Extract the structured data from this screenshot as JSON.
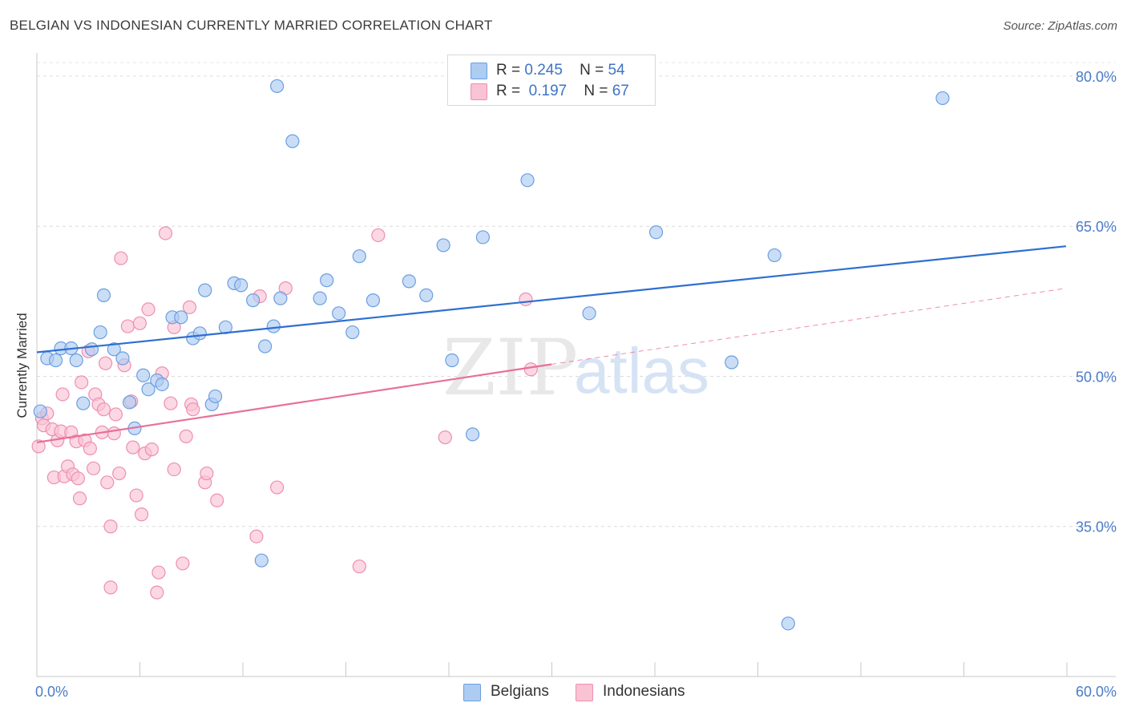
{
  "title": "BELGIAN VS INDONESIAN CURRENTLY MARRIED CORRELATION CHART",
  "source": "Source: ZipAtlas.com",
  "legend": {
    "rows": [
      {
        "r_label": "R =",
        "r_value": "0.245",
        "n_label": "N =",
        "n_value": "54",
        "color": "#aecbf2",
        "border": "#6b9fe0"
      },
      {
        "r_label": "R =",
        "r_value": "0.197",
        "n_label": "N =",
        "n_value": "67",
        "color": "#f9c3d4",
        "border": "#ee8fb0"
      }
    ]
  },
  "bottom_legend": [
    {
      "label": "Belgians",
      "color": "#aecbf2",
      "border": "#6b9fe0"
    },
    {
      "label": "Indonesians",
      "color": "#f9c3d4",
      "border": "#ee8fb0"
    }
  ],
  "watermark": {
    "zip": "ZIP",
    "atlas": "atlas"
  },
  "chart_data": {
    "type": "scatter",
    "title": "BELGIAN VS INDONESIAN CURRENTLY MARRIED CORRELATION CHART",
    "xlabel": "",
    "ylabel": "Currently Married",
    "xlim": [
      0,
      60
    ],
    "ylim": [
      20,
      82
    ],
    "x_tick_labels": [
      "0.0%",
      "60.0%"
    ],
    "y_ticks": [
      35,
      50,
      65,
      80
    ],
    "y_tick_labels": [
      "35.0%",
      "50.0%",
      "65.0%",
      "80.0%"
    ],
    "grid": true,
    "legend_position": "top-center",
    "series": [
      {
        "name": "Belgians",
        "color": "#6b9fe0",
        "fill": "#aecbf2",
        "trend": {
          "x": [
            0,
            60
          ],
          "y": [
            52.4,
            63.0
          ],
          "style": "solid",
          "color": "#2e6fd0"
        },
        "points": [
          [
            0.2,
            46.5
          ],
          [
            0.6,
            51.8
          ],
          [
            1.1,
            51.6
          ],
          [
            1.4,
            52.8
          ],
          [
            2.0,
            52.8
          ],
          [
            2.3,
            51.6
          ],
          [
            2.7,
            47.3
          ],
          [
            3.2,
            52.7
          ],
          [
            3.7,
            54.4
          ],
          [
            3.9,
            58.1
          ],
          [
            4.5,
            52.7
          ],
          [
            5.0,
            51.8
          ],
          [
            5.4,
            47.4
          ],
          [
            5.7,
            44.8
          ],
          [
            6.2,
            50.1
          ],
          [
            6.5,
            48.7
          ],
          [
            7.0,
            49.6
          ],
          [
            7.3,
            49.2
          ],
          [
            7.9,
            55.9
          ],
          [
            8.4,
            55.9
          ],
          [
            9.1,
            53.8
          ],
          [
            9.5,
            54.3
          ],
          [
            9.8,
            58.6
          ],
          [
            10.2,
            47.2
          ],
          [
            10.4,
            48.0
          ],
          [
            11.0,
            54.9
          ],
          [
            11.5,
            59.3
          ],
          [
            11.9,
            59.1
          ],
          [
            12.6,
            57.6
          ],
          [
            13.1,
            31.6
          ],
          [
            13.3,
            53.0
          ],
          [
            13.8,
            55.0
          ],
          [
            14.2,
            57.8
          ],
          [
            14.0,
            79.0
          ],
          [
            14.9,
            73.5
          ],
          [
            16.5,
            57.8
          ],
          [
            16.9,
            59.6
          ],
          [
            17.6,
            56.3
          ],
          [
            18.4,
            54.4
          ],
          [
            18.8,
            62.0
          ],
          [
            19.6,
            57.6
          ],
          [
            21.7,
            59.5
          ],
          [
            22.7,
            58.1
          ],
          [
            23.7,
            63.1
          ],
          [
            24.2,
            51.6
          ],
          [
            25.4,
            44.2
          ],
          [
            26.0,
            63.9
          ],
          [
            28.6,
            69.6
          ],
          [
            32.2,
            56.3
          ],
          [
            36.1,
            64.4
          ],
          [
            40.5,
            51.4
          ],
          [
            43.0,
            62.1
          ],
          [
            43.8,
            25.3
          ],
          [
            52.8,
            77.8
          ]
        ]
      },
      {
        "name": "Indonesians",
        "color": "#ee8fb0",
        "fill": "#f9c3d4",
        "trend": {
          "x": [
            0,
            30
          ],
          "y": [
            43.4,
            51.2
          ],
          "style": "solid",
          "color": "#e8709a",
          "dashed_extension": {
            "x": [
              30,
              60
            ],
            "y": [
              51.2,
              58.8
            ]
          }
        },
        "points": [
          [
            0.1,
            43.0
          ],
          [
            0.3,
            45.8
          ],
          [
            0.4,
            45.1
          ],
          [
            0.6,
            46.3
          ],
          [
            0.9,
            44.7
          ],
          [
            1.0,
            39.9
          ],
          [
            1.2,
            43.6
          ],
          [
            1.4,
            44.5
          ],
          [
            1.5,
            48.2
          ],
          [
            1.6,
            40.0
          ],
          [
            1.8,
            41.0
          ],
          [
            2.0,
            44.4
          ],
          [
            2.1,
            40.2
          ],
          [
            2.3,
            43.5
          ],
          [
            2.4,
            39.8
          ],
          [
            2.5,
            37.8
          ],
          [
            2.6,
            49.4
          ],
          [
            2.8,
            43.6
          ],
          [
            3.0,
            52.5
          ],
          [
            3.1,
            42.8
          ],
          [
            3.3,
            40.8
          ],
          [
            3.4,
            48.2
          ],
          [
            3.6,
            47.2
          ],
          [
            3.8,
            44.4
          ],
          [
            3.9,
            46.7
          ],
          [
            4.0,
            51.3
          ],
          [
            4.1,
            39.4
          ],
          [
            4.3,
            28.9
          ],
          [
            4.3,
            35.0
          ],
          [
            4.5,
            44.3
          ],
          [
            4.6,
            46.2
          ],
          [
            4.8,
            40.3
          ],
          [
            4.9,
            61.8
          ],
          [
            5.1,
            51.1
          ],
          [
            5.3,
            55.0
          ],
          [
            5.5,
            47.5
          ],
          [
            5.6,
            42.9
          ],
          [
            5.8,
            38.1
          ],
          [
            6.0,
            55.3
          ],
          [
            6.1,
            36.2
          ],
          [
            6.3,
            42.3
          ],
          [
            6.5,
            56.7
          ],
          [
            6.7,
            42.7
          ],
          [
            7.0,
            28.4
          ],
          [
            7.1,
            30.4
          ],
          [
            7.3,
            50.3
          ],
          [
            7.5,
            64.3
          ],
          [
            7.8,
            47.3
          ],
          [
            8.0,
            54.9
          ],
          [
            8.0,
            40.7
          ],
          [
            8.5,
            31.3
          ],
          [
            8.7,
            44.0
          ],
          [
            8.9,
            56.9
          ],
          [
            9.0,
            47.2
          ],
          [
            9.1,
            46.7
          ],
          [
            9.8,
            39.4
          ],
          [
            9.9,
            40.3
          ],
          [
            10.5,
            37.6
          ],
          [
            12.8,
            34.0
          ],
          [
            13.0,
            58.0
          ],
          [
            14.0,
            38.9
          ],
          [
            14.5,
            58.8
          ],
          [
            18.8,
            31.0
          ],
          [
            19.9,
            64.1
          ],
          [
            23.8,
            43.9
          ],
          [
            28.5,
            57.7
          ],
          [
            28.8,
            50.7
          ]
        ]
      }
    ]
  }
}
